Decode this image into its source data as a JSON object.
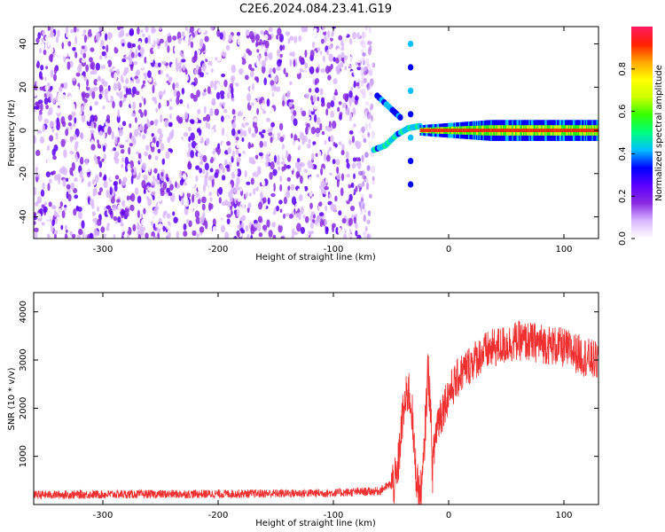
{
  "title": "C2E6.2024.084.23.41.G19",
  "chart_data": [
    {
      "type": "heatmap",
      "xlabel": "Height of straight line (km)",
      "ylabel": "Frequency (Hz)",
      "xlim": [
        -360,
        130
      ],
      "ylim": [
        -50,
        48
      ],
      "xticks": [
        -300,
        -200,
        -100,
        0,
        100
      ],
      "yticks": [
        -40,
        -20,
        0,
        20,
        40
      ],
      "grid": false,
      "noise_region": {
        "x_from": -360,
        "x_to": -65,
        "freq_from": -50,
        "freq_to": 48,
        "amplitude_range": [
          0.0,
          0.25
        ]
      },
      "features": [
        {
          "label": "converging tail",
          "x": [
            -65,
            -55,
            -45,
            -35,
            -25
          ],
          "freq": [
            -9,
            -7,
            -2,
            1,
            2
          ],
          "amplitude": 0.35
        },
        {
          "label": "upper branch",
          "x": [
            -62,
            -50,
            -42
          ],
          "freq": [
            16,
            10,
            6
          ],
          "amplitude": 0.3
        },
        {
          "label": "spike",
          "x": [
            -33,
            -33
          ],
          "freq": [
            -25,
            40
          ],
          "amplitude": 0.3
        },
        {
          "label": "carrier line",
          "x_from": -25,
          "x_to": 130,
          "freq": 0,
          "amplitude_peak": 0.95,
          "halfwidth_hz": 4
        }
      ],
      "colorbar": {
        "label": "Normalized spectral amplitude",
        "range": [
          0.0,
          1.0
        ],
        "ticks": [
          0.0,
          0.2,
          0.4,
          0.6,
          0.8
        ],
        "colormap": [
          "#ffffff",
          "#d9b8ff",
          "#8a2be2",
          "#5b00ff",
          "#0000ff",
          "#00bfff",
          "#00ff80",
          "#33ff00",
          "#ccff00",
          "#ffff00",
          "#ffa500",
          "#ff2000",
          "#ff1a66"
        ]
      },
      "colors": {
        "axis": "#000000"
      }
    },
    {
      "type": "line",
      "xlabel": "Height of straight line (km)",
      "ylabel": "SNR (10 * v/v)",
      "xlim": [
        -360,
        130
      ],
      "ylim": [
        0,
        4400
      ],
      "xticks": [
        -300,
        -200,
        -100,
        0,
        100
      ],
      "yticks": [
        1000,
        2000,
        3000,
        4000
      ],
      "grid": false,
      "series": [
        {
          "color": "#f03030",
          "x": [
            -360,
            -300,
            -200,
            -100,
            -60,
            -45,
            -40,
            -35,
            -32,
            -30,
            -27,
            -24,
            -22,
            -20,
            -18,
            -16,
            -14,
            -12,
            -10,
            -5,
            0,
            10,
            20,
            30,
            40,
            60,
            80,
            100,
            110,
            120,
            130
          ],
          "y": [
            200,
            210,
            220,
            240,
            280,
            500,
            1800,
            2400,
            2000,
            1100,
            400,
            200,
            700,
            1800,
            2800,
            2200,
            700,
            1300,
            1700,
            2000,
            2300,
            2700,
            2950,
            3150,
            3250,
            3400,
            3350,
            3250,
            3150,
            3050,
            2950
          ],
          "noise_amplitude": {
            "floor": 90,
            "rise": 500,
            "plateau": 420
          }
        }
      ]
    }
  ]
}
